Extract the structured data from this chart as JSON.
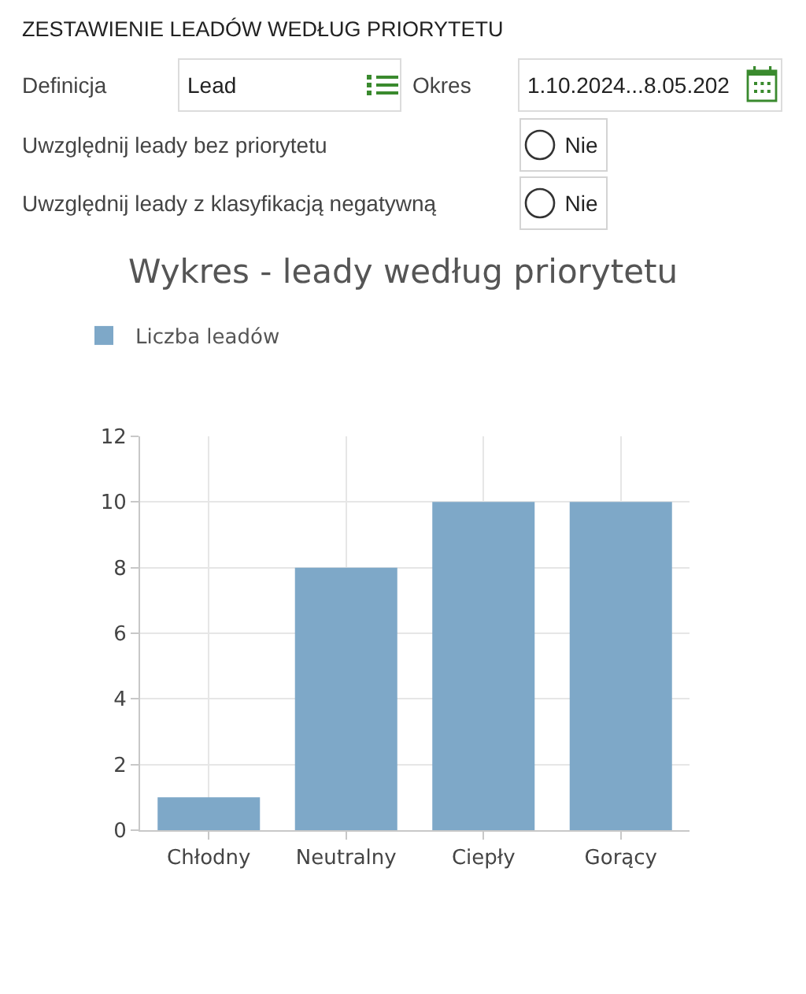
{
  "chart_data": {
    "type": "bar",
    "title": "Wykres - leady według priorytetu",
    "categories": [
      "Chłodny",
      "Neutralny",
      "Ciepły",
      "Gorący"
    ],
    "series": [
      {
        "name": "Liczba leadów",
        "color": "#7ea8c8",
        "values": [
          1,
          8,
          10,
          10
        ]
      }
    ],
    "ylim": [
      0,
      12
    ],
    "yticks": [
      0,
      2,
      4,
      6,
      8,
      10,
      12
    ],
    "grid": true,
    "legend": "top left",
    "annotations": [
      "ZESTAWIENIE LEADÓW WEDŁUG PRIORYTETU",
      "Definicja",
      "Lead",
      "Okres",
      "1.10.2024...8.05.202",
      "Uwzględnij leady bez priorytetu",
      "Nie",
      "Uwzględnij leady z klasyfikacją negatywną",
      "Nie"
    ]
  }
}
